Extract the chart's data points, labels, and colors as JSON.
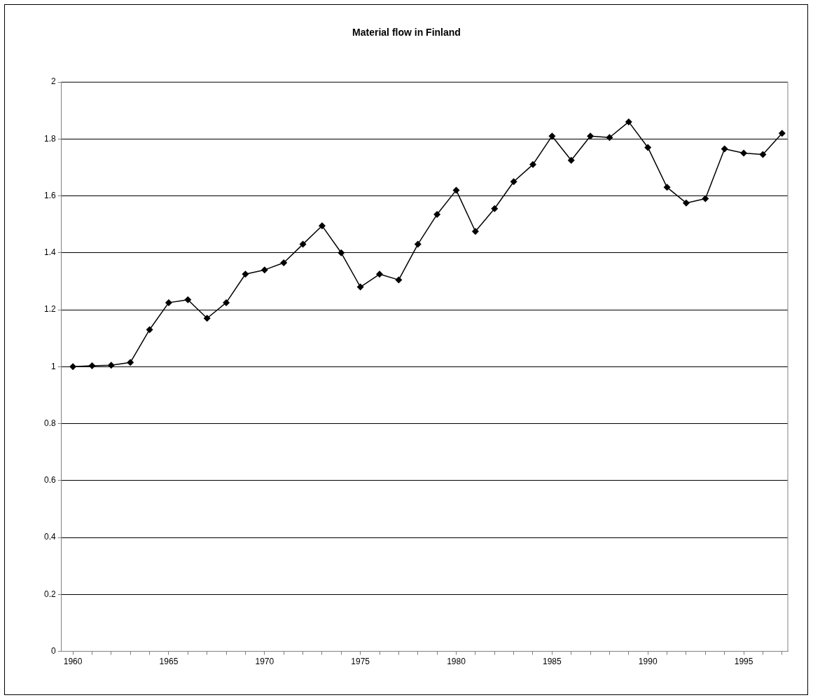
{
  "chart_data": {
    "type": "line",
    "title": "Material flow in Finland",
    "x": [
      1960,
      1961,
      1962,
      1963,
      1964,
      1965,
      1966,
      1967,
      1968,
      1969,
      1970,
      1971,
      1972,
      1973,
      1974,
      1975,
      1976,
      1977,
      1978,
      1979,
      1980,
      1981,
      1982,
      1983,
      1984,
      1985,
      1986,
      1987,
      1988,
      1989,
      1990,
      1991,
      1992,
      1993,
      1994,
      1995,
      1996,
      1997
    ],
    "series": [
      {
        "color": "#000000",
        "values": [
          1.0,
          1.003,
          1.005,
          1.015,
          1.13,
          1.225,
          1.235,
          1.17,
          1.225,
          1.325,
          1.34,
          1.365,
          1.43,
          1.495,
          1.4,
          1.28,
          1.325,
          1.305,
          1.43,
          1.535,
          1.62,
          1.475,
          1.555,
          1.65,
          1.71,
          1.81,
          1.725,
          1.81,
          1.805,
          1.86,
          1.77,
          1.63,
          1.575,
          1.59,
          1.765,
          1.75,
          1.745,
          1.82
        ]
      }
    ],
    "xlim": [
      1959.4,
      1997.3
    ],
    "xticks": [
      1960,
      {
        "value": 1961,
        "label": null
      },
      {
        "value": 1962,
        "label": null
      },
      {
        "value": 1963,
        "label": null
      },
      {
        "value": 1964,
        "label": null
      },
      1965,
      {
        "value": 1966,
        "label": null
      },
      {
        "value": 1967,
        "label": null
      },
      {
        "value": 1968,
        "label": null
      },
      {
        "value": 1969,
        "label": null
      },
      1970,
      {
        "value": 1971,
        "label": null
      },
      {
        "value": 1972,
        "label": null
      },
      {
        "value": 1973,
        "label": null
      },
      {
        "value": 1974,
        "label": null
      },
      1975,
      {
        "value": 1976,
        "label": null
      },
      {
        "value": 1977,
        "label": null
      },
      {
        "value": 1978,
        "label": null
      },
      {
        "value": 1979,
        "label": null
      },
      1980,
      {
        "value": 1981,
        "label": null
      },
      {
        "value": 1982,
        "label": null
      },
      {
        "value": 1983,
        "label": null
      },
      {
        "value": 1984,
        "label": null
      },
      1985,
      {
        "value": 1986,
        "label": null
      },
      {
        "value": 1987,
        "label": null
      },
      {
        "value": 1988,
        "label": null
      },
      {
        "value": 1989,
        "label": null
      },
      1990,
      {
        "value": 1991,
        "label": null
      },
      {
        "value": 1992,
        "label": null
      },
      {
        "value": 1993,
        "label": null
      },
      {
        "value": 1994,
        "label": null
      },
      1995,
      {
        "value": 1996,
        "label": null
      },
      {
        "value": 1997,
        "label": null
      }
    ],
    "ylim": [
      0,
      2
    ],
    "yticks": [
      0,
      0.2,
      0.4,
      0.6,
      0.8,
      1,
      1.2,
      1.4,
      1.6,
      1.8,
      2
    ],
    "grid": "y",
    "legend": false,
    "marker": "diamond",
    "line_style": "solid"
  }
}
